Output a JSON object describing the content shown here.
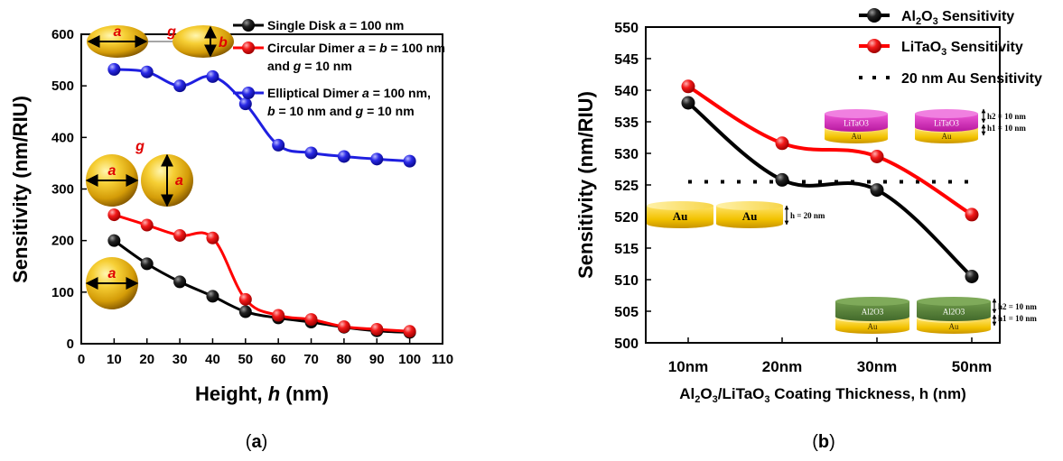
{
  "chart_data": [
    {
      "id": "a",
      "type": "line",
      "caption": "a",
      "xlabel": "Height, ",
      "xlabel_var": "h",
      "xlabel_unit": " (nm)",
      "ylabel": "Sensitivity (nm/RIU)",
      "xlim": [
        0,
        110
      ],
      "ylim": [
        0,
        600
      ],
      "xticks": [
        0,
        10,
        20,
        30,
        40,
        50,
        60,
        70,
        80,
        90,
        100,
        110
      ],
      "yticks": [
        0,
        100,
        200,
        300,
        400,
        500,
        600
      ],
      "legend_position": "top-right",
      "x": [
        10,
        20,
        30,
        40,
        50,
        60,
        70,
        80,
        90,
        100
      ],
      "series": [
        {
          "key": "single",
          "legend": [
            "Single Disk ",
            "a",
            " = 100 nm"
          ],
          "color": "#000000",
          "values": [
            200,
            155,
            120,
            92,
            62,
            50,
            42,
            32,
            25,
            22
          ]
        },
        {
          "key": "circular",
          "legend": [
            "Circular Dimer ",
            "a",
            " = ",
            "b",
            " = 100 nm"
          ],
          "legend2": [
            "and ",
            "g",
            " = 10 nm"
          ],
          "color": "#ff0000",
          "values": [
            250,
            230,
            210,
            205,
            86,
            55,
            47,
            33,
            28,
            24
          ]
        },
        {
          "key": "elliptical",
          "legend": [
            "Elliptical Dimer ",
            "a",
            " = 100 nm,"
          ],
          "legend2": [
            "b",
            " = 10 nm and ",
            "g",
            " = 10 nm"
          ],
          "color": "#1f1fe0",
          "values": [
            532,
            527,
            500,
            518,
            465,
            385,
            370,
            363,
            358,
            354
          ]
        }
      ],
      "insets": {
        "ellipse_a": "a",
        "ellipse_b": "b",
        "gap": "g",
        "circle_a": "a"
      }
    },
    {
      "id": "b",
      "type": "line",
      "caption": "b",
      "xlabel": "Al2O3/LiTaO3 Coating Thickness, h (nm)",
      "ylabel": "Sensitivity (nm/RIU)",
      "categories": [
        "10nm",
        "20nm",
        "30nm",
        "50nm"
      ],
      "ylim": [
        500,
        550
      ],
      "yticks": [
        500,
        505,
        510,
        515,
        520,
        525,
        530,
        535,
        540,
        545,
        550
      ],
      "legend_position": "top-right",
      "series": [
        {
          "key": "al2o3",
          "legend": "Al2O3 Sensitivity",
          "color": "#000000",
          "values": [
            538,
            525.8,
            524.2,
            510.5
          ]
        },
        {
          "key": "litao3",
          "legend": "LiTaO3 Sensitivity",
          "color": "#ff0000",
          "values": [
            540.6,
            531.6,
            529.5,
            520.3
          ]
        },
        {
          "key": "au_ref",
          "legend": "20 nm Au Sensitivity",
          "color": "#000000",
          "style": "dotted",
          "value": 525.5
        }
      ],
      "insets": {
        "litao3_label": "LiTaO3",
        "au_label": "Au",
        "al2o3_label": "Al2O3",
        "h2": "h2 = 10 nm",
        "h1": "h1 = 10 nm",
        "h": "h = 20 nm"
      }
    }
  ]
}
